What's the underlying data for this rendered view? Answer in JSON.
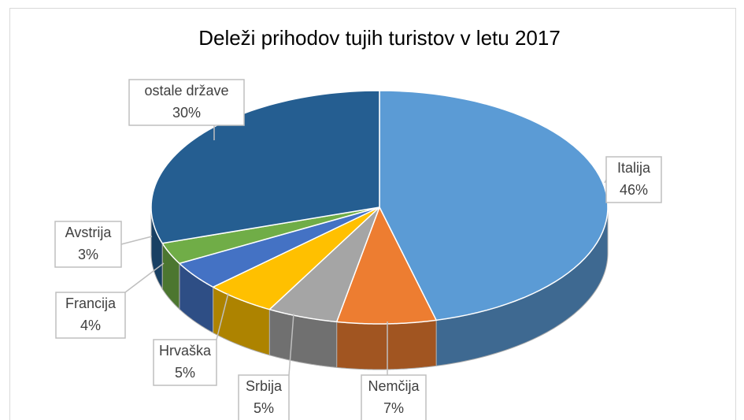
{
  "chart_data": {
    "type": "pie",
    "title": "Deleži prihodov tujih turistov v letu 2017",
    "categories": [
      "Italija",
      "Nemčija",
      "Srbija",
      "Hrvaška",
      "Francija",
      "Avstrija",
      "ostale države"
    ],
    "values": [
      46,
      7,
      5,
      5,
      4,
      3,
      30
    ],
    "value_labels": [
      "46%",
      "7%",
      "5%",
      "5%",
      "4%",
      "3%",
      "30%"
    ],
    "colors": [
      "#5b9bd5",
      "#ed7d31",
      "#a5a5a5",
      "#ffc000",
      "#4472c4",
      "#70ad47",
      "#255e91"
    ],
    "three_d": true
  }
}
